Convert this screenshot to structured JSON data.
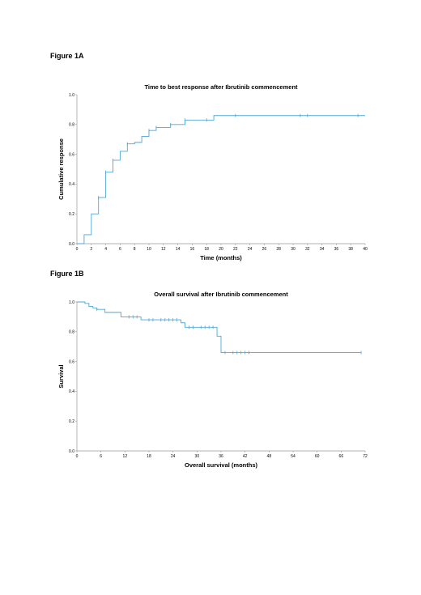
{
  "figures": {
    "a_label": "Figure 1A",
    "b_label": "Figure 1B"
  },
  "chart_data": [
    {
      "type": "line",
      "title": "Time to best response after Ibrutinib commencement",
      "xlabel": "Time (months)",
      "ylabel": "Cumulative response",
      "xlim": [
        0,
        40
      ],
      "ylim": [
        0,
        1.0
      ],
      "xticks": [
        "0",
        "2",
        "4",
        "6",
        "8",
        "10",
        "12",
        "14",
        "16",
        "18",
        "20",
        "22",
        "24",
        "26",
        "28",
        "30",
        "32",
        "34",
        "36",
        "38",
        "40"
      ],
      "yticks": [
        "0.0",
        "0.2",
        "0.4",
        "0.6",
        "0.8",
        "1.0"
      ],
      "step": "up",
      "grid": false,
      "color": "#4aa8d8",
      "series": [
        {
          "x": [
            0,
            1,
            2,
            3,
            4,
            5,
            6,
            7,
            8,
            9,
            10,
            11,
            13,
            15,
            19,
            40
          ],
          "y": [
            0.0,
            0.06,
            0.2,
            0.31,
            0.48,
            0.56,
            0.62,
            0.67,
            0.68,
            0.72,
            0.76,
            0.78,
            0.8,
            0.83,
            0.86,
            0.86
          ],
          "censored": [
            {
              "x": 3,
              "y": 0.31
            },
            {
              "x": 4,
              "y": 0.48
            },
            {
              "x": 5,
              "y": 0.56
            },
            {
              "x": 7,
              "y": 0.67
            },
            {
              "x": 10,
              "y": 0.76
            },
            {
              "x": 11,
              "y": 0.78
            },
            {
              "x": 13,
              "y": 0.8
            },
            {
              "x": 15,
              "y": 0.83
            },
            {
              "x": 18,
              "y": 0.83
            },
            {
              "x": 22,
              "y": 0.86
            },
            {
              "x": 31,
              "y": 0.86
            },
            {
              "x": 32,
              "y": 0.86
            },
            {
              "x": 39,
              "y": 0.86
            }
          ]
        }
      ]
    },
    {
      "type": "line",
      "title": "Overall survival after Ibrutinib commencement",
      "xlabel": "Overall survival (months)",
      "ylabel": "Survival",
      "xlim": [
        0,
        72
      ],
      "ylim": [
        0,
        1.0
      ],
      "xticks": [
        "0",
        "6",
        "12",
        "18",
        "24",
        "30",
        "36",
        "42",
        "48",
        "54",
        "60",
        "66",
        "72"
      ],
      "yticks": [
        "0.0",
        "0.2",
        "0.4",
        "0.6",
        "0.8",
        "1.0"
      ],
      "step": "down",
      "grid": false,
      "color": "#4aa8d8",
      "series": [
        {
          "x": [
            0,
            2,
            3,
            4,
            5,
            7,
            11,
            16,
            26,
            27,
            35,
            36,
            71
          ],
          "y": [
            1.0,
            0.99,
            0.97,
            0.96,
            0.95,
            0.93,
            0.9,
            0.88,
            0.86,
            0.83,
            0.77,
            0.66,
            0.66
          ],
          "censored": [
            {
              "x": 5,
              "y": 0.95
            },
            {
              "x": 13,
              "y": 0.9
            },
            {
              "x": 14,
              "y": 0.9
            },
            {
              "x": 15,
              "y": 0.9
            },
            {
              "x": 18,
              "y": 0.88
            },
            {
              "x": 19,
              "y": 0.88
            },
            {
              "x": 21,
              "y": 0.88
            },
            {
              "x": 22,
              "y": 0.88
            },
            {
              "x": 23,
              "y": 0.88
            },
            {
              "x": 24,
              "y": 0.88
            },
            {
              "x": 25,
              "y": 0.88
            },
            {
              "x": 28,
              "y": 0.83
            },
            {
              "x": 29,
              "y": 0.83
            },
            {
              "x": 31,
              "y": 0.83
            },
            {
              "x": 32,
              "y": 0.83
            },
            {
              "x": 33,
              "y": 0.83
            },
            {
              "x": 34,
              "y": 0.83
            },
            {
              "x": 37,
              "y": 0.66
            },
            {
              "x": 39,
              "y": 0.66
            },
            {
              "x": 40,
              "y": 0.66
            },
            {
              "x": 41,
              "y": 0.66
            },
            {
              "x": 42,
              "y": 0.66
            },
            {
              "x": 43,
              "y": 0.66
            },
            {
              "x": 71,
              "y": 0.66
            }
          ]
        }
      ]
    }
  ]
}
